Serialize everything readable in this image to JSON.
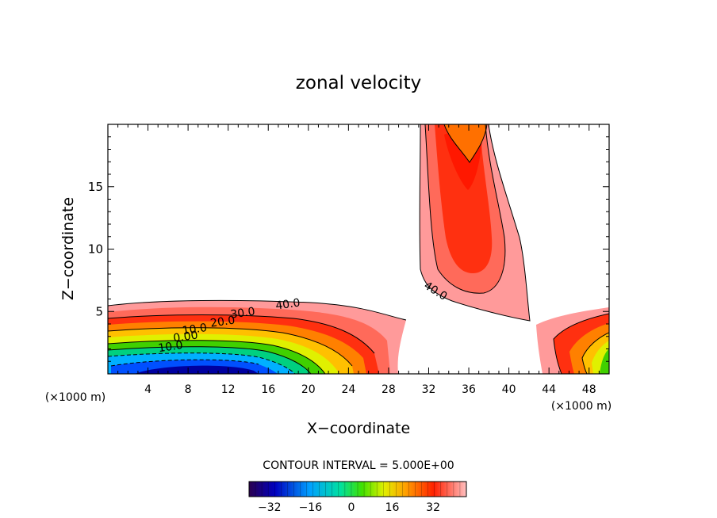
{
  "chart_data": {
    "type": "heatmap",
    "title": "zonal velocity",
    "xlabel": "X−coordinate",
    "ylabel": "Z−coordinate",
    "x_unit_left": "(×1000 m)",
    "x_unit_right": "(×1000 m)",
    "xlim": [
      0,
      50
    ],
    "ylim": [
      0,
      20
    ],
    "x_ticks": [
      4,
      8,
      12,
      16,
      20,
      24,
      28,
      32,
      36,
      40,
      44,
      48
    ],
    "y_ticks": [
      5,
      10,
      15
    ],
    "contour_interval_text": "CONTOUR INTERVAL = 5.000E+00",
    "contour_interval": 5.0,
    "contour_labels": [
      {
        "text": "40.0",
        "x": 18.0,
        "y": 5.3
      },
      {
        "text": "30.0",
        "x": 13.5,
        "y": 4.6
      },
      {
        "text": "20.0",
        "x": 11.5,
        "y": 3.9
      },
      {
        "text": "10.0",
        "x": 8.7,
        "y": 3.3
      },
      {
        "text": "0.00",
        "x": 7.8,
        "y": 2.7
      },
      {
        "text": "10.0",
        "x": 6.3,
        "y": 1.9
      },
      {
        "text": "40.0",
        "x": 32.5,
        "y": 6.4
      }
    ],
    "features": [
      {
        "name": "near-surface jet",
        "x_center": 12,
        "x_extent": [
          0,
          30
        ],
        "z_top": 5.5,
        "min_value": -40
      },
      {
        "name": "upper jet",
        "x_extent": [
          31,
          41
        ],
        "z_bottom": 4.3,
        "z_top": 20,
        "max_value": 45
      },
      {
        "name": "right flank",
        "x_extent": [
          42.5,
          50
        ],
        "z_top": 5.2,
        "min_value": 0
      }
    ],
    "colorbar": {
      "range": [
        -40,
        45
      ],
      "tick_labels": [
        "−32",
        "−16",
        "0",
        "16",
        "32"
      ],
      "tick_values": [
        -32,
        -16,
        0,
        16,
        32
      ]
    },
    "grid": false
  }
}
